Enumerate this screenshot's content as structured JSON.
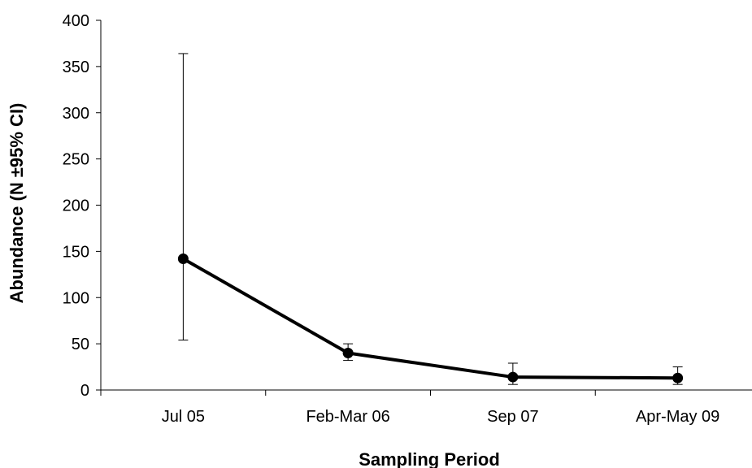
{
  "chart_data": {
    "type": "line",
    "title": "",
    "xlabel": "Sampling Period",
    "ylabel": "Abundance (N ±95% CI)",
    "categories": [
      "Jul 05",
      "Feb-Mar 06",
      "Sep 07",
      "Apr-May 09"
    ],
    "series": [
      {
        "values": [
          142,
          40,
          14,
          13
        ],
        "ci_lower": [
          54,
          32,
          6,
          6
        ],
        "ci_upper": [
          364,
          50,
          29,
          25
        ],
        "color": "#000000",
        "marker": "circle"
      }
    ],
    "ylim": [
      0,
      400
    ],
    "yticks": [
      0,
      50,
      100,
      150,
      200,
      250,
      300,
      350,
      400
    ],
    "grid": false,
    "legend": "none"
  }
}
